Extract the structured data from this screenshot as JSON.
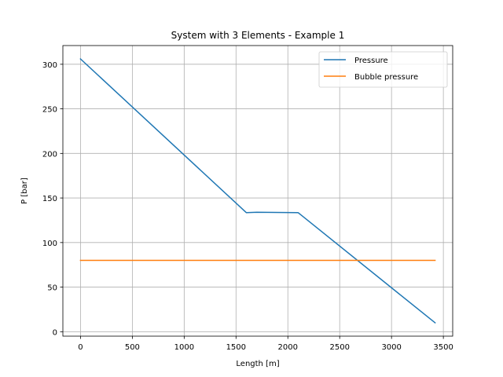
{
  "chart_data": {
    "type": "line",
    "title": "System with 3 Elements - Example 1",
    "xlabel": "Length [m]",
    "ylabel": "P [bar]",
    "xlim": [
      -170,
      3590
    ],
    "ylim": [
      -5,
      321
    ],
    "xticks": [
      0,
      500,
      1000,
      1500,
      2000,
      2500,
      3000,
      3500
    ],
    "yticks": [
      0,
      50,
      100,
      150,
      200,
      250,
      300
    ],
    "grid": true,
    "legend_position": "top-right",
    "series": [
      {
        "name": "Pressure",
        "color": "#1f77b4",
        "x": [
          0,
          1600,
          1700,
          2100,
          3420
        ],
        "y": [
          306,
          133.5,
          134,
          133.5,
          10
        ]
      },
      {
        "name": "Bubble pressure",
        "color": "#ff7f0e",
        "x": [
          0,
          3420
        ],
        "y": [
          80,
          80
        ]
      }
    ]
  }
}
